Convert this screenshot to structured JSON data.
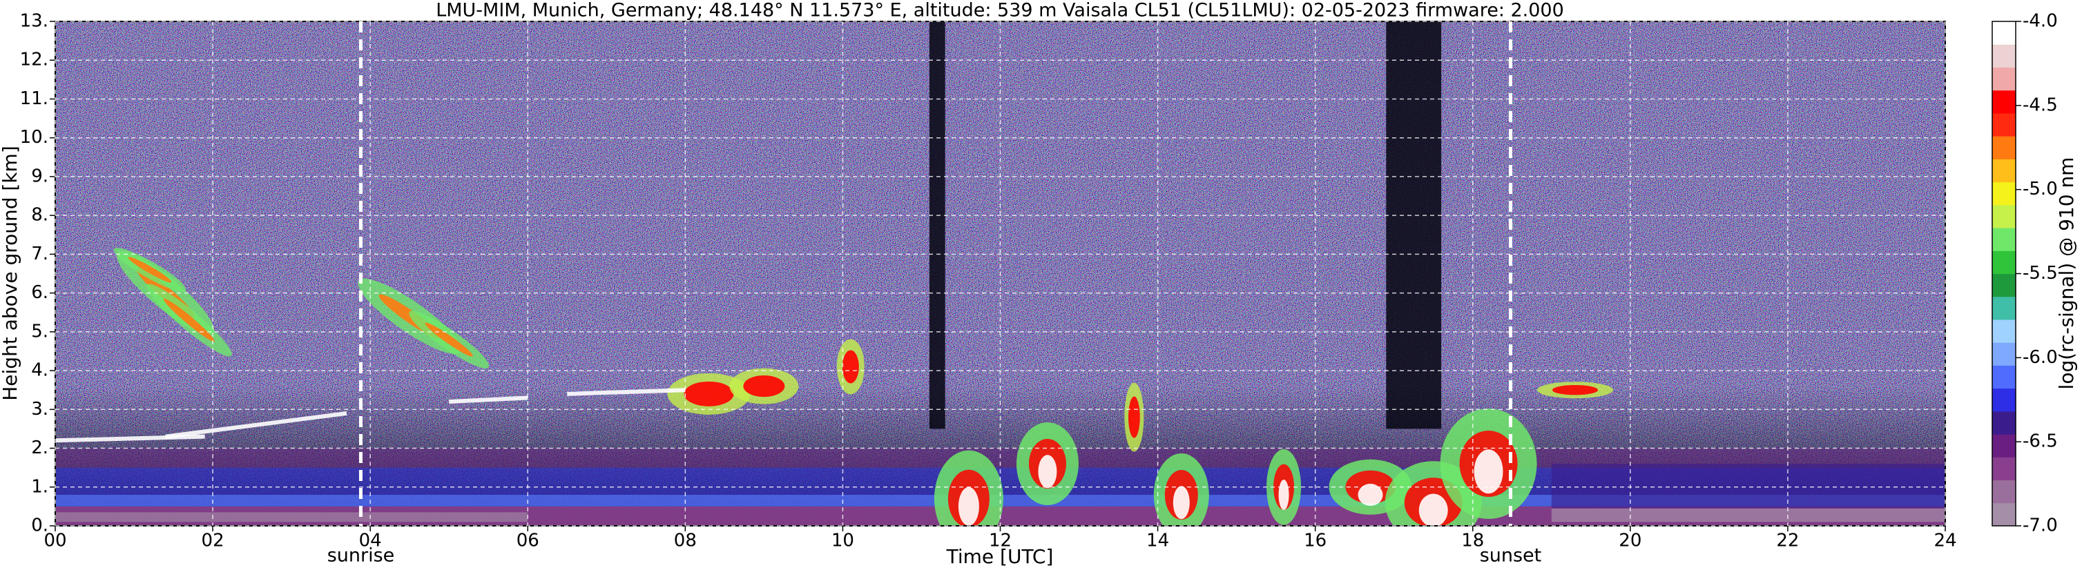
{
  "chart_data": {
    "type": "heatmap",
    "title": "LMU-MIM, Munich, Germany; 48.148° N 11.573° E, altitude: 539 m    Vaisala CL51 (CL51LMU): 02-05-2023    firmware: 2.000",
    "x_label": "Time [UTC]",
    "y_label": "Height above ground [km]",
    "colorbar_label": "log(rc-signal) @ 910 nm",
    "xlim": [
      0,
      24
    ],
    "xticks": [
      {
        "value": 0,
        "label": "00"
      },
      {
        "value": 2,
        "label": "02"
      },
      {
        "value": 4,
        "label": "04"
      },
      {
        "value": 6,
        "label": "06"
      },
      {
        "value": 8,
        "label": "08"
      },
      10,
      12,
      14,
      16,
      18,
      20,
      22,
      24
    ],
    "ylim": [
      0,
      13
    ],
    "yticks": [
      {
        "value": 0,
        "label": "0."
      },
      {
        "value": 1,
        "label": "1."
      },
      {
        "value": 2,
        "label": "2."
      },
      {
        "value": 3,
        "label": "3."
      },
      {
        "value": 4,
        "label": "4."
      },
      {
        "value": 5,
        "label": "5."
      },
      {
        "value": 6,
        "label": "6."
      },
      {
        "value": 7,
        "label": "7."
      },
      {
        "value": 8,
        "label": "8."
      },
      {
        "value": 9,
        "label": "9."
      },
      {
        "value": 10,
        "label": "10."
      },
      {
        "value": 11,
        "label": "11."
      },
      {
        "value": 12,
        "label": "12."
      },
      {
        "value": 13,
        "label": "13."
      }
    ],
    "clim": [
      -7,
      -4
    ],
    "cticks": [
      {
        "value": -4,
        "label": "-4.0"
      },
      -4.5,
      {
        "value": -5,
        "label": "-5.0"
      },
      -5.5,
      {
        "value": -6,
        "label": "-6.0"
      },
      -6.5,
      {
        "value": -7,
        "label": "-7.0"
      }
    ],
    "colormap": [
      "#a58fa8",
      "#9a6f9c",
      "#8a3f8e",
      "#6a1e82",
      "#3b1c8c",
      "#2e2ee6",
      "#4f6cff",
      "#7fa8ff",
      "#9fd2ff",
      "#3fbfa8",
      "#1e9a3c",
      "#2fc43a",
      "#6fe86a",
      "#c6f04a",
      "#f4f21a",
      "#ffbe1a",
      "#ff7a10",
      "#ff2a10",
      "#ff0000",
      "#f0a8a8",
      "#ecd2d2",
      "#ffffff"
    ],
    "grid": true,
    "annotations": [
      {
        "text": "sunrise",
        "x": 3.88
      },
      {
        "text": "sunset",
        "x": 18.48
      }
    ]
  }
}
